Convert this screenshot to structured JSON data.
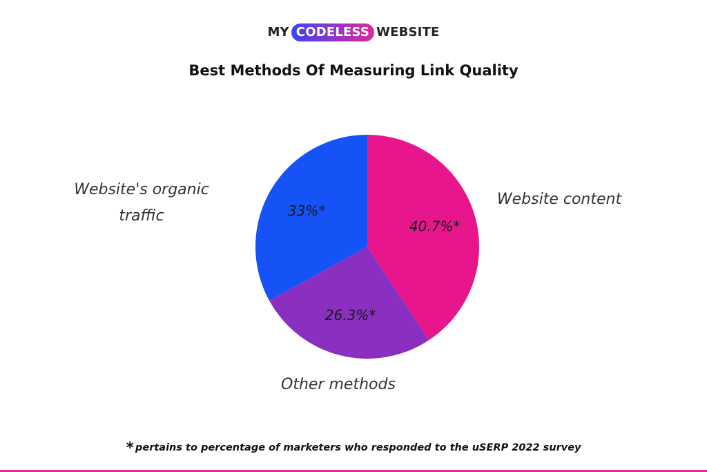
{
  "logo": {
    "prefix": "MY",
    "highlight": "CODELESS",
    "suffix": "WEBSITE",
    "pill_gradient_start": "#3b45f5",
    "pill_gradient_end": "#e0289a"
  },
  "colors": {
    "website_content": "#e7168c",
    "other_methods": "#8a2fbf",
    "organic_traffic": "#1553f6",
    "bottom_line": "#e0289a"
  },
  "chart_data": {
    "type": "pie",
    "title": "Best Methods Of Measuring Link Quality",
    "slices": [
      {
        "name": "Website content",
        "value": 40.7,
        "label": "40.7%*",
        "color": "#e7168c"
      },
      {
        "name": "Other methods",
        "value": 26.3,
        "label": "26.3%*",
        "color": "#8a2fbf"
      },
      {
        "name": "Website's organic traffic",
        "value": 33,
        "label": "33%*",
        "color": "#1553f6"
      }
    ],
    "start": "top (12 o'clock)",
    "direction": "clockwise"
  },
  "labels": {
    "organic_line1": "Website's organic",
    "organic_line2": "traffic",
    "content": "Website content",
    "other": "Other methods"
  },
  "footnote": {
    "star": "*",
    "text": "pertains to percentage of marketers who responded to the uSERP 2022 survey"
  }
}
